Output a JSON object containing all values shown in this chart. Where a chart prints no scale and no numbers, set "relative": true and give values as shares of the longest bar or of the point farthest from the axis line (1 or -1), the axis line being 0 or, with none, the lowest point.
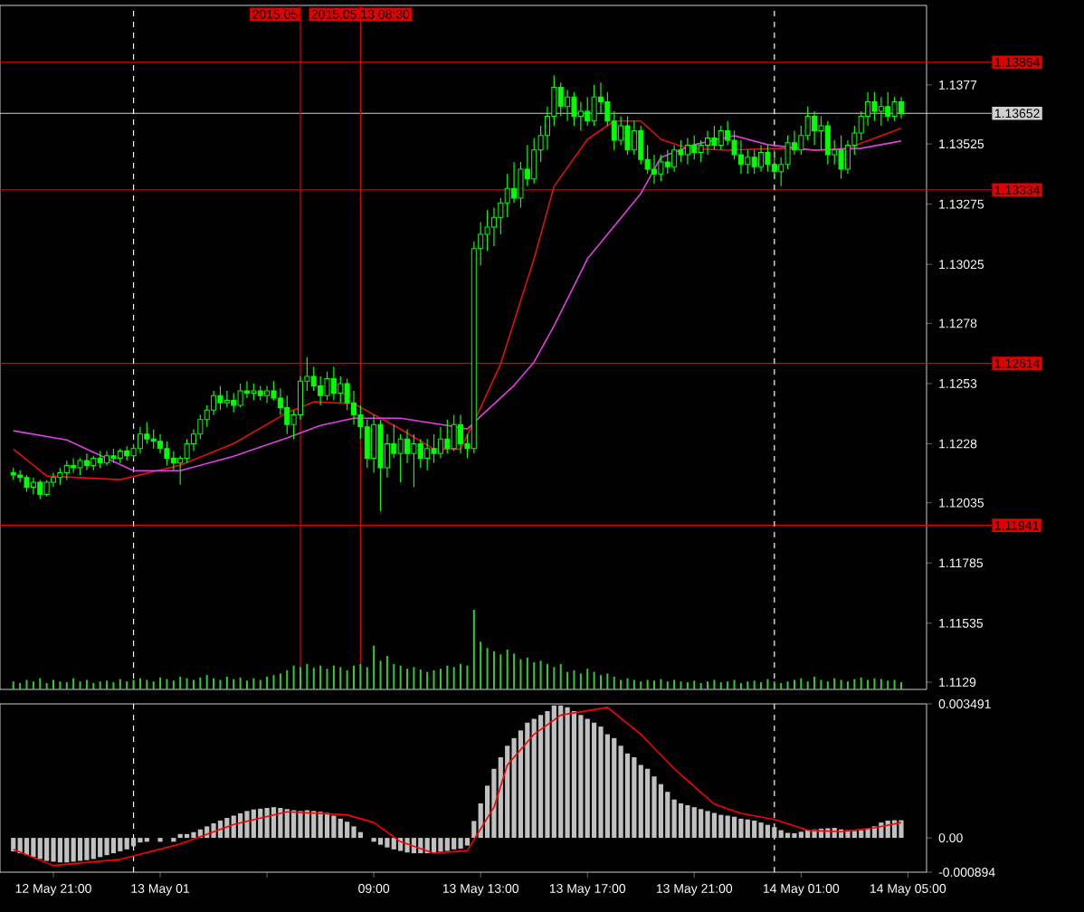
{
  "chart_data": [
    {
      "type": "candlestick",
      "xlim": [
        "2015-05-12T19:00",
        "2015-05-14T05:42"
      ],
      "ylim": [
        1.1126,
        1.141
      ],
      "tick_labels": "y",
      "yticks": [
        1.1129,
        1.11535,
        1.11785,
        1.12035,
        1.1228,
        1.1253,
        1.1278,
        1.13025,
        1.13275,
        1.13525,
        1.1377
      ],
      "series": [
        {
          "type": "line",
          "color": "#e01010",
          "x": [
            "2015-05-12T19:30",
            "2015-05-12T20:45",
            "2015-05-12T23:30",
            "2015-05-13T01:45",
            "2015-05-13T03:45",
            "2015-05-13T05:45",
            "2015-05-13T06:45",
            "2015-05-13T08:15",
            "2015-05-13T10:00",
            "2015-05-13T11:15",
            "2015-05-13T12:15",
            "2015-05-13T13:00",
            "2015-05-13T13:45",
            "2015-05-13T15:00",
            "2015-05-13T15:45",
            "2015-05-13T17:00",
            "2015-05-13T18:00",
            "2015-05-13T19:00",
            "2015-05-13T19:45",
            "2015-05-13T20:45",
            "2015-05-13T22:15",
            "2015-05-14T00:15",
            "2015-05-14T01:30",
            "2015-05-14T02:45",
            "2015-05-14T04:00",
            "2015-05-14T04:45"
          ],
          "values": [
            1.12258,
            1.12146,
            1.12131,
            1.12191,
            1.12281,
            1.12409,
            1.12454,
            1.12446,
            1.12341,
            1.12258,
            1.12258,
            1.12431,
            1.12612,
            1.13048,
            1.13349,
            1.13544,
            1.1362,
            1.1362,
            1.13544,
            1.13507,
            1.13499,
            1.13507,
            1.13499,
            1.13507,
            1.13559,
            1.1359
          ]
        },
        {
          "type": "line",
          "color": "#e040e0",
          "x": [
            "2015-05-12T19:30",
            "2015-05-12T21:30",
            "2015-05-13T00:00",
            "2015-05-13T01:45",
            "2015-05-13T03:45",
            "2015-05-13T05:45",
            "2015-05-13T07:00",
            "2015-05-13T08:15",
            "2015-05-13T10:00",
            "2015-05-13T11:45",
            "2015-05-13T12:30",
            "2015-05-13T13:00",
            "2015-05-13T14:15",
            "2015-05-13T15:00",
            "2015-05-13T15:45",
            "2015-05-13T17:00",
            "2015-05-13T19:00",
            "2015-05-13T19:45",
            "2015-05-13T21:00",
            "2015-05-13T22:30",
            "2015-05-13T23:45",
            "2015-05-14T01:30",
            "2015-05-14T03:15",
            "2015-05-14T04:45"
          ],
          "values": [
            1.12334,
            1.12296,
            1.12168,
            1.12168,
            1.12228,
            1.12304,
            1.12356,
            1.12386,
            1.12386,
            1.12356,
            1.12341,
            1.12394,
            1.12522,
            1.12619,
            1.1277,
            1.13048,
            1.13319,
            1.13469,
            1.13522,
            1.13559,
            1.13522,
            1.13499,
            1.13507,
            1.13537
          ]
        },
        {
          "type": "candlestick",
          "color": "#00ff00",
          "x": [
            "2015-05-12T19:30",
            "2015-05-12T19:45",
            "2015-05-12T20:00",
            "2015-05-12T20:15",
            "2015-05-12T20:30",
            "2015-05-12T20:45",
            "2015-05-12T21:00",
            "2015-05-12T21:15",
            "2015-05-12T21:30",
            "2015-05-12T21:45",
            "2015-05-12T22:00",
            "2015-05-12T22:15",
            "2015-05-12T22:30",
            "2015-05-12T22:45",
            "2015-05-12T23:00",
            "2015-05-12T23:15",
            "2015-05-12T23:30",
            "2015-05-12T23:45",
            "2015-05-13T00:00",
            "2015-05-13T00:15",
            "2015-05-13T00:30",
            "2015-05-13T00:45",
            "2015-05-13T01:00",
            "2015-05-13T01:15",
            "2015-05-13T01:30",
            "2015-05-13T01:45",
            "2015-05-13T02:00",
            "2015-05-13T02:15",
            "2015-05-13T02:30",
            "2015-05-13T02:45",
            "2015-05-13T03:00",
            "2015-05-13T03:15",
            "2015-05-13T03:30",
            "2015-05-13T03:45",
            "2015-05-13T04:00",
            "2015-05-13T04:15",
            "2015-05-13T04:30",
            "2015-05-13T04:45",
            "2015-05-13T05:00",
            "2015-05-13T05:15",
            "2015-05-13T05:30",
            "2015-05-13T05:45",
            "2015-05-13T06:00",
            "2015-05-13T06:15",
            "2015-05-13T06:30",
            "2015-05-13T06:45",
            "2015-05-13T07:00",
            "2015-05-13T07:15",
            "2015-05-13T07:30",
            "2015-05-13T07:45",
            "2015-05-13T08:00",
            "2015-05-13T08:15",
            "2015-05-13T08:30",
            "2015-05-13T08:45",
            "2015-05-13T09:00",
            "2015-05-13T09:15",
            "2015-05-13T09:30",
            "2015-05-13T09:45",
            "2015-05-13T10:00",
            "2015-05-13T10:15",
            "2015-05-13T10:30",
            "2015-05-13T10:45",
            "2015-05-13T11:00",
            "2015-05-13T11:15",
            "2015-05-13T11:30",
            "2015-05-13T11:45",
            "2015-05-13T12:00",
            "2015-05-13T12:15",
            "2015-05-13T12:30",
            "2015-05-13T12:45",
            "2015-05-13T13:00",
            "2015-05-13T13:15",
            "2015-05-13T13:30",
            "2015-05-13T13:45",
            "2015-05-13T14:00",
            "2015-05-13T14:15",
            "2015-05-13T14:30",
            "2015-05-13T14:45",
            "2015-05-13T15:00",
            "2015-05-13T15:15",
            "2015-05-13T15:30",
            "2015-05-13T15:45",
            "2015-05-13T16:00",
            "2015-05-13T16:15",
            "2015-05-13T16:30",
            "2015-05-13T16:45",
            "2015-05-13T17:00",
            "2015-05-13T17:15",
            "2015-05-13T17:30",
            "2015-05-13T17:45",
            "2015-05-13T18:00",
            "2015-05-13T18:15",
            "2015-05-13T18:30",
            "2015-05-13T18:45",
            "2015-05-13T19:00",
            "2015-05-13T19:15",
            "2015-05-13T19:30",
            "2015-05-13T19:45",
            "2015-05-13T20:00",
            "2015-05-13T20:15",
            "2015-05-13T20:30",
            "2015-05-13T20:45",
            "2015-05-13T21:00",
            "2015-05-13T21:15",
            "2015-05-13T21:30",
            "2015-05-13T21:45",
            "2015-05-13T22:00",
            "2015-05-13T22:15",
            "2015-05-13T22:30",
            "2015-05-13T22:45",
            "2015-05-13T23:00",
            "2015-05-13T23:15",
            "2015-05-13T23:30",
            "2015-05-13T23:45",
            "2015-05-14T00:00",
            "2015-05-14T00:15",
            "2015-05-14T00:30",
            "2015-05-14T00:45",
            "2015-05-14T01:00",
            "2015-05-14T01:15",
            "2015-05-14T01:30",
            "2015-05-14T01:45",
            "2015-05-14T02:00",
            "2015-05-14T02:15",
            "2015-05-14T02:30",
            "2015-05-14T02:45",
            "2015-05-14T03:00",
            "2015-05-14T03:15",
            "2015-05-14T03:30",
            "2015-05-14T03:45",
            "2015-05-14T04:00",
            "2015-05-14T04:15",
            "2015-05-14T04:30",
            "2015-05-14T04:45"
          ],
          "ohlc": [
            [
              1.1216,
              1.1218,
              1.1213,
              1.1215
            ],
            [
              1.1215,
              1.1217,
              1.1212,
              1.1214
            ],
            [
              1.1214,
              1.1215,
              1.1208,
              1.121
            ],
            [
              1.121,
              1.1214,
              1.1207,
              1.1212
            ],
            [
              1.1212,
              1.1213,
              1.1205,
              1.1207
            ],
            [
              1.1207,
              1.1213,
              1.1206,
              1.1212
            ],
            [
              1.1212,
              1.1216,
              1.121,
              1.1214
            ],
            [
              1.1214,
              1.1218,
              1.1211,
              1.1216
            ],
            [
              1.1216,
              1.1221,
              1.1213,
              1.1219
            ],
            [
              1.1219,
              1.1222,
              1.1216,
              1.1218
            ],
            [
              1.1218,
              1.1222,
              1.1215,
              1.1221
            ],
            [
              1.1221,
              1.1224,
              1.1217,
              1.1219
            ],
            [
              1.1219,
              1.1223,
              1.1217,
              1.1222
            ],
            [
              1.1222,
              1.1225,
              1.1218,
              1.122
            ],
            [
              1.122,
              1.1225,
              1.1219,
              1.1223
            ],
            [
              1.1223,
              1.1226,
              1.122,
              1.1222
            ],
            [
              1.1222,
              1.1226,
              1.122,
              1.1225
            ],
            [
              1.1225,
              1.1227,
              1.1221,
              1.1223
            ],
            [
              1.1223,
              1.1228,
              1.1222,
              1.1226
            ],
            [
              1.1226,
              1.1235,
              1.1224,
              1.1232
            ],
            [
              1.1232,
              1.1237,
              1.1228,
              1.123
            ],
            [
              1.123,
              1.1234,
              1.1226,
              1.1229
            ],
            [
              1.1229,
              1.1232,
              1.1224,
              1.1226
            ],
            [
              1.1226,
              1.1229,
              1.1219,
              1.1222
            ],
            [
              1.1222,
              1.1225,
              1.1217,
              1.122
            ],
            [
              1.122,
              1.1223,
              1.1211,
              1.1222
            ],
            [
              1.1222,
              1.123,
              1.122,
              1.1228
            ],
            [
              1.1228,
              1.1234,
              1.1225,
              1.1232
            ],
            [
              1.1232,
              1.124,
              1.123,
              1.1238
            ],
            [
              1.1238,
              1.1244,
              1.1235,
              1.1242
            ],
            [
              1.1242,
              1.125,
              1.124,
              1.1248
            ],
            [
              1.1248,
              1.1252,
              1.1242,
              1.1245
            ],
            [
              1.1245,
              1.125,
              1.1243,
              1.1246
            ],
            [
              1.1246,
              1.1249,
              1.1241,
              1.1244
            ],
            [
              1.1244,
              1.1253,
              1.1243,
              1.125
            ],
            [
              1.125,
              1.1254,
              1.1247,
              1.1249
            ],
            [
              1.1249,
              1.1253,
              1.1246,
              1.125
            ],
            [
              1.125,
              1.1252,
              1.1246,
              1.1248
            ],
            [
              1.1248,
              1.1252,
              1.1245,
              1.125
            ],
            [
              1.125,
              1.1254,
              1.1246,
              1.1247
            ],
            [
              1.1247,
              1.1251,
              1.124,
              1.1243
            ],
            [
              1.1243,
              1.1248,
              1.1232,
              1.1236
            ],
            [
              1.1236,
              1.1242,
              1.123,
              1.124
            ],
            [
              1.124,
              1.1256,
              1.1238,
              1.1254
            ],
            [
              1.1254,
              1.1264,
              1.125,
              1.1256
            ],
            [
              1.1256,
              1.126,
              1.125,
              1.1252
            ],
            [
              1.1252,
              1.1256,
              1.1244,
              1.1248
            ],
            [
              1.1248,
              1.1258,
              1.1246,
              1.1255
            ],
            [
              1.1255,
              1.126,
              1.1246,
              1.1249
            ],
            [
              1.1249,
              1.1256,
              1.1245,
              1.1253
            ],
            [
              1.1253,
              1.1255,
              1.1242,
              1.1245
            ],
            [
              1.1245,
              1.125,
              1.1236,
              1.124
            ],
            [
              1.124,
              1.1244,
              1.123,
              1.1235
            ],
            [
              1.1235,
              1.1238,
              1.1218,
              1.1222
            ],
            [
              1.1222,
              1.124,
              1.1216,
              1.1236
            ],
            [
              1.1236,
              1.1238,
              1.12,
              1.1218
            ],
            [
              1.1218,
              1.1232,
              1.1214,
              1.1228
            ],
            [
              1.1228,
              1.1236,
              1.1222,
              1.1224
            ],
            [
              1.1224,
              1.1232,
              1.1212,
              1.123
            ],
            [
              1.123,
              1.1234,
              1.122,
              1.1224
            ],
            [
              1.1224,
              1.1232,
              1.121,
              1.1228
            ],
            [
              1.1228,
              1.123,
              1.1218,
              1.1222
            ],
            [
              1.1222,
              1.123,
              1.1217,
              1.1226
            ],
            [
              1.1226,
              1.1232,
              1.122,
              1.1224
            ],
            [
              1.1224,
              1.1235,
              1.1222,
              1.123
            ],
            [
              1.123,
              1.1238,
              1.1224,
              1.1226
            ],
            [
              1.1226,
              1.124,
              1.1225,
              1.1236
            ],
            [
              1.1236,
              1.124,
              1.1224,
              1.1228
            ],
            [
              1.1228,
              1.1232,
              1.1222,
              1.1226
            ],
            [
              1.1226,
              1.1312,
              1.1224,
              1.1309
            ],
            [
              1.1309,
              1.132,
              1.1302,
              1.1315
            ],
            [
              1.1315,
              1.1325,
              1.1308,
              1.1318
            ],
            [
              1.1318,
              1.1326,
              1.131,
              1.1322
            ],
            [
              1.1322,
              1.133,
              1.1315,
              1.1328
            ],
            [
              1.1328,
              1.134,
              1.1322,
              1.1334
            ],
            [
              1.1334,
              1.1345,
              1.1328,
              1.133
            ],
            [
              1.133,
              1.1345,
              1.1326,
              1.1342
            ],
            [
              1.1342,
              1.1352,
              1.1335,
              1.1338
            ],
            [
              1.1338,
              1.1355,
              1.1336,
              1.135
            ],
            [
              1.135,
              1.136,
              1.1345,
              1.1356
            ],
            [
              1.1356,
              1.1368,
              1.135,
              1.1364
            ],
            [
              1.1364,
              1.1381,
              1.136,
              1.1376
            ],
            [
              1.1376,
              1.1378,
              1.1364,
              1.1368
            ],
            [
              1.1368,
              1.1375,
              1.1362,
              1.1372
            ],
            [
              1.1372,
              1.1374,
              1.136,
              1.1364
            ],
            [
              1.1364,
              1.137,
              1.1358,
              1.1366
            ],
            [
              1.1366,
              1.1372,
              1.136,
              1.1362
            ],
            [
              1.1362,
              1.1377,
              1.136,
              1.1372
            ],
            [
              1.1372,
              1.1378,
              1.1365,
              1.137
            ],
            [
              1.137,
              1.1374,
              1.136,
              1.1362
            ],
            [
              1.1362,
              1.1366,
              1.135,
              1.1354
            ],
            [
              1.1354,
              1.1364,
              1.1352,
              1.136
            ],
            [
              1.136,
              1.1364,
              1.1348,
              1.135
            ],
            [
              1.135,
              1.1362,
              1.1348,
              1.1358
            ],
            [
              1.1358,
              1.136,
              1.1344,
              1.1346
            ],
            [
              1.1346,
              1.1352,
              1.134,
              1.1342
            ],
            [
              1.1342,
              1.1348,
              1.1336,
              1.134
            ],
            [
              1.134,
              1.1348,
              1.1337,
              1.1345
            ],
            [
              1.1345,
              1.135,
              1.134,
              1.1343
            ],
            [
              1.1343,
              1.1352,
              1.1341,
              1.135
            ],
            [
              1.135,
              1.1354,
              1.1345,
              1.1348
            ],
            [
              1.1348,
              1.1355,
              1.1344,
              1.1352
            ],
            [
              1.1352,
              1.1356,
              1.1346,
              1.1349
            ],
            [
              1.1349,
              1.1354,
              1.1345,
              1.1352
            ],
            [
              1.1352,
              1.1358,
              1.1348,
              1.1355
            ],
            [
              1.1355,
              1.136,
              1.135,
              1.1352
            ],
            [
              1.1352,
              1.136,
              1.135,
              1.1358
            ],
            [
              1.1358,
              1.1362,
              1.1352,
              1.1354
            ],
            [
              1.1354,
              1.1358,
              1.1346,
              1.1348
            ],
            [
              1.1348,
              1.1354,
              1.134,
              1.1344
            ],
            [
              1.1344,
              1.135,
              1.134,
              1.1347
            ],
            [
              1.1347,
              1.135,
              1.134,
              1.1343
            ],
            [
              1.1343,
              1.1352,
              1.1341,
              1.1349
            ],
            [
              1.1349,
              1.1352,
              1.1341,
              1.1344
            ],
            [
              1.1344,
              1.135,
              1.1338,
              1.1341
            ],
            [
              1.1341,
              1.1347,
              1.1335,
              1.1344
            ],
            [
              1.1344,
              1.1356,
              1.1342,
              1.1353
            ],
            [
              1.1353,
              1.1358,
              1.1348,
              1.135
            ],
            [
              1.135,
              1.136,
              1.1348,
              1.1356
            ],
            [
              1.1356,
              1.1368,
              1.1354,
              1.1364
            ],
            [
              1.1364,
              1.1366,
              1.1352,
              1.1358
            ],
            [
              1.1358,
              1.1364,
              1.135,
              1.136
            ],
            [
              1.136,
              1.1362,
              1.1344,
              1.1348
            ],
            [
              1.1348,
              1.1354,
              1.1344,
              1.135
            ],
            [
              1.135,
              1.1356,
              1.1338,
              1.1342
            ],
            [
              1.1342,
              1.1354,
              1.134,
              1.1352
            ],
            [
              1.1352,
              1.136,
              1.1348,
              1.1357
            ],
            [
              1.1357,
              1.1366,
              1.1354,
              1.1364
            ],
            [
              1.1364,
              1.1374,
              1.136,
              1.137
            ],
            [
              1.137,
              1.1374,
              1.1362,
              1.1366
            ],
            [
              1.1366,
              1.1372,
              1.136,
              1.1368
            ],
            [
              1.1368,
              1.1374,
              1.1362,
              1.1364
            ],
            [
              1.1364,
              1.1372,
              1.1362,
              1.137
            ],
            [
              1.137,
              1.1372,
              1.1363,
              1.1365
            ]
          ]
        }
      ],
      "ref_lines": [
        {
          "axis": "y",
          "value": 1.13864,
          "label": "1.13864",
          "color": "#e00000"
        },
        {
          "axis": "y",
          "value": 1.13652,
          "label": "1.13652",
          "color": "#d0d0d0"
        },
        {
          "axis": "y",
          "value": 1.13334,
          "label": "1.13334",
          "color": "#e00000"
        },
        {
          "axis": "y",
          "value": 1.12614,
          "label": "1.12614",
          "color": "#e00000"
        },
        {
          "axis": "y",
          "value": 1.11941,
          "label": "1.11941",
          "color": "#e00000"
        },
        {
          "axis": "x",
          "value": "2015-05-13T00:00",
          "color": "#ffffff",
          "line_style": "dashed"
        },
        {
          "axis": "x",
          "value": "2015-05-14T00:00",
          "color": "#ffffff",
          "line_style": "dashed"
        },
        {
          "axis": "x",
          "value": "2015-05-13T06:15",
          "label": "2015.05",
          "color": "#e00000"
        },
        {
          "axis": "x",
          "value": "2015-05-13T08:30",
          "label": "2015.05.13 08:30",
          "color": "#e00000"
        }
      ]
    },
    {
      "type": "bar",
      "relative": true,
      "color": "#32cd32",
      "xlim": [
        "2015-05-12T19:00",
        "2015-05-14T05:42"
      ],
      "x": [
        "2015-05-12T19:30",
        "2015-05-12T19:45",
        "2015-05-12T20:00",
        "2015-05-12T20:15",
        "2015-05-12T20:30",
        "2015-05-12T20:45",
        "2015-05-12T21:00",
        "2015-05-12T21:15",
        "2015-05-12T21:30",
        "2015-05-12T21:45",
        "2015-05-12T22:00",
        "2015-05-12T22:15",
        "2015-05-12T22:30",
        "2015-05-12T22:45",
        "2015-05-12T23:00",
        "2015-05-12T23:15",
        "2015-05-12T23:30",
        "2015-05-12T23:45",
        "2015-05-13T00:00",
        "2015-05-13T00:15",
        "2015-05-13T00:30",
        "2015-05-13T00:45",
        "2015-05-13T01:00",
        "2015-05-13T01:15",
        "2015-05-13T01:30",
        "2015-05-13T01:45",
        "2015-05-13T02:00",
        "2015-05-13T02:15",
        "2015-05-13T02:30",
        "2015-05-13T02:45",
        "2015-05-13T03:00",
        "2015-05-13T03:15",
        "2015-05-13T03:30",
        "2015-05-13T03:45",
        "2015-05-13T04:00",
        "2015-05-13T04:15",
        "2015-05-13T04:30",
        "2015-05-13T04:45",
        "2015-05-13T05:00",
        "2015-05-13T05:15",
        "2015-05-13T05:30",
        "2015-05-13T05:45",
        "2015-05-13T06:00",
        "2015-05-13T06:15",
        "2015-05-13T06:30",
        "2015-05-13T06:45",
        "2015-05-13T07:00",
        "2015-05-13T07:15",
        "2015-05-13T07:30",
        "2015-05-13T07:45",
        "2015-05-13T08:00",
        "2015-05-13T08:15",
        "2015-05-13T08:30",
        "2015-05-13T08:45",
        "2015-05-13T09:00",
        "2015-05-13T09:15",
        "2015-05-13T09:30",
        "2015-05-13T09:45",
        "2015-05-13T10:00",
        "2015-05-13T10:15",
        "2015-05-13T10:30",
        "2015-05-13T10:45",
        "2015-05-13T11:00",
        "2015-05-13T11:15",
        "2015-05-13T11:30",
        "2015-05-13T11:45",
        "2015-05-13T12:00",
        "2015-05-13T12:15",
        "2015-05-13T12:30",
        "2015-05-13T12:45",
        "2015-05-13T13:00",
        "2015-05-13T13:15",
        "2015-05-13T13:30",
        "2015-05-13T13:45",
        "2015-05-13T14:00",
        "2015-05-13T14:15",
        "2015-05-13T14:30",
        "2015-05-13T14:45",
        "2015-05-13T15:00",
        "2015-05-13T15:15",
        "2015-05-13T15:30",
        "2015-05-13T15:45",
        "2015-05-13T16:00",
        "2015-05-13T16:15",
        "2015-05-13T16:30",
        "2015-05-13T16:45",
        "2015-05-13T17:00",
        "2015-05-13T17:15",
        "2015-05-13T17:30",
        "2015-05-13T17:45",
        "2015-05-13T18:00",
        "2015-05-13T18:15",
        "2015-05-13T18:30",
        "2015-05-13T18:45",
        "2015-05-13T19:00",
        "2015-05-13T19:15",
        "2015-05-13T19:30",
        "2015-05-13T19:45",
        "2015-05-13T20:00",
        "2015-05-13T20:15",
        "2015-05-13T20:30",
        "2015-05-13T20:45",
        "2015-05-13T21:00",
        "2015-05-13T21:15",
        "2015-05-13T21:30",
        "2015-05-13T21:45",
        "2015-05-13T22:00",
        "2015-05-13T22:15",
        "2015-05-13T22:30",
        "2015-05-13T22:45",
        "2015-05-13T23:00",
        "2015-05-13T23:15",
        "2015-05-13T23:30",
        "2015-05-13T23:45",
        "2015-05-14T00:00",
        "2015-05-14T00:15",
        "2015-05-14T00:30",
        "2015-05-14T00:45",
        "2015-05-14T01:00",
        "2015-05-14T01:15",
        "2015-05-14T01:30",
        "2015-05-14T01:45",
        "2015-05-14T02:00",
        "2015-05-14T02:15",
        "2015-05-14T02:30",
        "2015-05-14T02:45",
        "2015-05-14T03:00",
        "2015-05-14T03:15",
        "2015-05-14T03:30",
        "2015-05-14T03:45",
        "2015-05-14T04:00",
        "2015-05-14T04:15",
        "2015-05-14T04:30",
        "2015-05-14T04:45"
      ],
      "values": [
        0.1,
        0.08,
        0.12,
        0.1,
        0.14,
        0.08,
        0.12,
        0.1,
        0.09,
        0.14,
        0.1,
        0.12,
        0.08,
        0.1,
        0.11,
        0.09,
        0.13,
        0.1,
        0.12,
        0.14,
        0.12,
        0.1,
        0.15,
        0.13,
        0.11,
        0.16,
        0.14,
        0.12,
        0.15,
        0.18,
        0.14,
        0.12,
        0.16,
        0.13,
        0.15,
        0.11,
        0.14,
        0.12,
        0.16,
        0.18,
        0.2,
        0.24,
        0.3,
        0.28,
        0.32,
        0.27,
        0.3,
        0.26,
        0.3,
        0.28,
        0.24,
        0.3,
        0.32,
        0.28,
        0.55,
        0.36,
        0.42,
        0.32,
        0.3,
        0.26,
        0.28,
        0.25,
        0.22,
        0.24,
        0.26,
        0.3,
        0.28,
        0.32,
        0.3,
        1.0,
        0.6,
        0.52,
        0.48,
        0.44,
        0.5,
        0.45,
        0.38,
        0.4,
        0.34,
        0.36,
        0.32,
        0.28,
        0.32,
        0.22,
        0.24,
        0.2,
        0.26,
        0.22,
        0.18,
        0.2,
        0.16,
        0.12,
        0.14,
        0.12,
        0.1,
        0.12,
        0.11,
        0.13,
        0.1,
        0.12,
        0.1,
        0.09,
        0.11,
        0.08,
        0.1,
        0.12,
        0.09,
        0.1,
        0.12,
        0.08,
        0.1,
        0.11,
        0.09,
        0.13,
        0.1,
        0.08,
        0.1,
        0.12,
        0.14,
        0.1,
        0.16,
        0.12,
        0.1,
        0.14,
        0.12,
        0.1,
        0.13,
        0.15,
        0.12,
        0.14,
        0.13,
        0.11,
        0.12,
        0.09
      ]
    },
    {
      "type": "bar",
      "xlim": [
        "2015-05-12T19:00",
        "2015-05-14T05:42"
      ],
      "ylim": [
        -0.000894,
        0.003491
      ],
      "yticks": [
        0.003491,
        {
          "value": 0,
          "label": "0.00"
        },
        -0.000894
      ],
      "xticks": [
        {
          "value": "2015-05-12T21:00",
          "label": "12 May 21:00"
        },
        {
          "value": "2015-05-13T01:00",
          "label": "13 May 01"
        },
        {
          "value": "2015-05-13T05:00",
          "label": null
        },
        {
          "value": "2015-05-13T09:00",
          "label": "09:00"
        },
        {
          "value": "2015-05-13T13:00",
          "label": "13 May 13:00"
        },
        {
          "value": "2015-05-13T17:00",
          "label": "13 May 17:00"
        },
        {
          "value": "2015-05-13T21:00",
          "label": "13 May 21:00"
        },
        {
          "value": "2015-05-14T01:00",
          "label": "14 May 01:00"
        },
        {
          "value": "2015-05-14T05:00",
          "label": "14 May 05:00"
        }
      ],
      "x": [
        "2015-05-12T19:30",
        "2015-05-12T19:45",
        "2015-05-12T20:00",
        "2015-05-12T20:15",
        "2015-05-12T20:30",
        "2015-05-12T20:45",
        "2015-05-12T21:00",
        "2015-05-12T21:15",
        "2015-05-12T21:30",
        "2015-05-12T21:45",
        "2015-05-12T22:00",
        "2015-05-12T22:15",
        "2015-05-12T22:30",
        "2015-05-12T22:45",
        "2015-05-12T23:00",
        "2015-05-12T23:15",
        "2015-05-12T23:30",
        "2015-05-12T23:45",
        "2015-05-13T00:00",
        "2015-05-13T00:15",
        "2015-05-13T00:30",
        "2015-05-13T00:45",
        "2015-05-13T01:00",
        "2015-05-13T01:15",
        "2015-05-13T01:30",
        "2015-05-13T01:45",
        "2015-05-13T02:00",
        "2015-05-13T02:15",
        "2015-05-13T02:30",
        "2015-05-13T02:45",
        "2015-05-13T03:00",
        "2015-05-13T03:15",
        "2015-05-13T03:30",
        "2015-05-13T03:45",
        "2015-05-13T04:00",
        "2015-05-13T04:15",
        "2015-05-13T04:30",
        "2015-05-13T04:45",
        "2015-05-13T05:00",
        "2015-05-13T05:15",
        "2015-05-13T05:30",
        "2015-05-13T05:45",
        "2015-05-13T06:00",
        "2015-05-13T06:15",
        "2015-05-13T06:30",
        "2015-05-13T06:45",
        "2015-05-13T07:00",
        "2015-05-13T07:15",
        "2015-05-13T07:30",
        "2015-05-13T07:45",
        "2015-05-13T08:00",
        "2015-05-13T08:15",
        "2015-05-13T08:30",
        "2015-05-13T08:45",
        "2015-05-13T09:00",
        "2015-05-13T09:15",
        "2015-05-13T09:30",
        "2015-05-13T09:45",
        "2015-05-13T10:00",
        "2015-05-13T10:15",
        "2015-05-13T10:30",
        "2015-05-13T10:45",
        "2015-05-13T11:00",
        "2015-05-13T11:15",
        "2015-05-13T11:30",
        "2015-05-13T11:45",
        "2015-05-13T12:00",
        "2015-05-13T12:15",
        "2015-05-13T12:30",
        "2015-05-13T12:45",
        "2015-05-13T13:00",
        "2015-05-13T13:15",
        "2015-05-13T13:30",
        "2015-05-13T13:45",
        "2015-05-13T14:00",
        "2015-05-13T14:15",
        "2015-05-13T14:30",
        "2015-05-13T14:45",
        "2015-05-13T15:00",
        "2015-05-13T15:15",
        "2015-05-13T15:30",
        "2015-05-13T15:45",
        "2015-05-13T16:00",
        "2015-05-13T16:15",
        "2015-05-13T16:30",
        "2015-05-13T16:45",
        "2015-05-13T17:00",
        "2015-05-13T17:15",
        "2015-05-13T17:30",
        "2015-05-13T17:45",
        "2015-05-13T18:00",
        "2015-05-13T18:15",
        "2015-05-13T18:30",
        "2015-05-13T18:45",
        "2015-05-13T19:00",
        "2015-05-13T19:15",
        "2015-05-13T19:30",
        "2015-05-13T19:45",
        "2015-05-13T20:00",
        "2015-05-13T20:15",
        "2015-05-13T20:30",
        "2015-05-13T20:45",
        "2015-05-13T21:00",
        "2015-05-13T21:15",
        "2015-05-13T21:30",
        "2015-05-13T21:45",
        "2015-05-13T22:00",
        "2015-05-13T22:15",
        "2015-05-13T22:30",
        "2015-05-13T22:45",
        "2015-05-13T23:00",
        "2015-05-13T23:15",
        "2015-05-13T23:30",
        "2015-05-13T23:45",
        "2015-05-14T00:00",
        "2015-05-14T00:15",
        "2015-05-14T00:30",
        "2015-05-14T00:45",
        "2015-05-14T01:00",
        "2015-05-14T01:15",
        "2015-05-14T01:30",
        "2015-05-14T01:45",
        "2015-05-14T02:00",
        "2015-05-14T02:15",
        "2015-05-14T02:30",
        "2015-05-14T02:45",
        "2015-05-14T03:00",
        "2015-05-14T03:15",
        "2015-05-14T03:30",
        "2015-05-14T03:45",
        "2015-05-14T04:00",
        "2015-05-14T04:15",
        "2015-05-14T04:30",
        "2015-05-14T04:45"
      ],
      "series": [
        {
          "type": "bar",
          "color": "#c0c0c0",
          "values": [
            -0.00035,
            -0.0004,
            -0.00045,
            -0.0005,
            -0.00055,
            -0.0006,
            -0.00062,
            -0.00064,
            -0.00064,
            -0.00062,
            -0.0006,
            -0.00058,
            -0.00055,
            -0.0005,
            -0.00045,
            -0.0004,
            -0.00035,
            -0.0003,
            -0.00022,
            -0.00012,
            -0.0001,
            0.0,
            -0.0001,
            0.0,
            -0.0001,
            0.0001,
            0.0001,
            0.00015,
            0.00022,
            0.0003,
            0.00038,
            0.00045,
            0.00052,
            0.00058,
            0.00064,
            0.0007,
            0.00074,
            0.00076,
            0.00078,
            0.0008,
            0.00078,
            0.00075,
            0.00072,
            0.0007,
            0.00072,
            0.0007,
            0.00068,
            0.00065,
            0.00058,
            0.0005,
            0.00042,
            0.0003,
            0.00015,
            0.0,
            -0.0001,
            -0.00018,
            -0.00025,
            -0.0003,
            -0.00034,
            -0.00038,
            -0.0004,
            -0.0004,
            -0.0004,
            -0.00038,
            -0.00036,
            -0.00034,
            -0.0003,
            -0.00028,
            -0.0002,
            0.00044,
            0.0009,
            0.00136,
            0.0018,
            0.0021,
            0.0024,
            0.0026,
            0.0028,
            0.003,
            0.0031,
            0.0032,
            0.0033,
            0.00345,
            0.00345,
            0.0034,
            0.0033,
            0.0032,
            0.0031,
            0.003,
            0.0029,
            0.0027,
            0.0026,
            0.0024,
            0.0022,
            0.0021,
            0.0019,
            0.0018,
            0.0016,
            0.0014,
            0.0012,
            0.001,
            0.0009,
            0.00085,
            0.0008,
            0.00075,
            0.0007,
            0.00065,
            0.0006,
            0.00058,
            0.00055,
            0.0005,
            0.00048,
            0.00045,
            0.0004,
            0.00034,
            0.00028,
            0.0002,
            0.00013,
            0.00012,
            0.00016,
            0.0002,
            0.00022,
            0.00024,
            0.00025,
            0.00026,
            0.00022,
            0.0002,
            0.00018,
            0.0002,
            0.00024,
            0.0003,
            0.0004,
            0.00045,
            0.00046,
            0.00046
          ]
        },
        {
          "type": "line",
          "color": "#ff0000",
          "x": [
            "2015-05-12T19:30",
            "2015-05-12T21:00",
            "2015-05-12T23:30",
            "2015-05-13T01:45",
            "2015-05-13T03:45",
            "2015-05-13T05:45",
            "2015-05-13T08:00",
            "2015-05-13T09:00",
            "2015-05-13T10:00",
            "2015-05-13T11:15",
            "2015-05-13T12:30",
            "2015-05-13T13:30",
            "2015-05-13T14:00",
            "2015-05-13T15:00",
            "2015-05-13T16:00",
            "2015-05-13T17:45",
            "2015-05-13T19:00",
            "2015-05-13T20:15",
            "2015-05-13T21:45",
            "2015-05-13T22:45",
            "2015-05-14T00:00",
            "2015-05-14T01:15",
            "2015-05-14T02:30",
            "2015-05-14T03:45",
            "2015-05-14T04:45"
          ],
          "values": [
            -0.0003,
            -0.00072,
            -0.00056,
            -0.00016,
            0.00035,
            0.00068,
            0.0006,
            0.0004,
            -0.0001,
            -0.0004,
            -0.00033,
            0.0008,
            0.0019,
            0.0027,
            0.0032,
            0.0034,
            0.0027,
            0.0018,
            0.00088,
            0.00064,
            0.00048,
            0.0002,
            0.00016,
            0.00026,
            0.0004
          ]
        }
      ],
      "ref_lines": [
        {
          "axis": "x",
          "value": "2015-05-13T00:00",
          "color": "#ffffff",
          "line_style": "dashed"
        },
        {
          "axis": "x",
          "value": "2015-05-14T00:00",
          "color": "#ffffff",
          "line_style": "dashed"
        }
      ]
    }
  ]
}
